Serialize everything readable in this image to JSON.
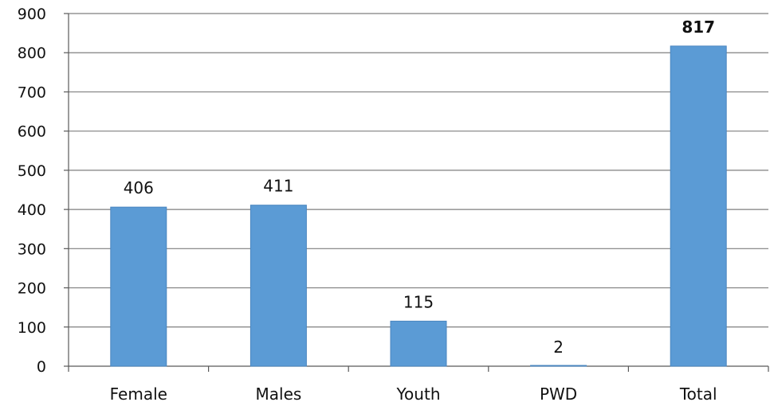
{
  "chart_data": {
    "type": "bar",
    "categories": [
      "Female",
      "Males",
      "Youth",
      "PWD",
      "Total"
    ],
    "values": [
      406,
      411,
      115,
      2,
      817
    ],
    "data_labels": [
      "406",
      "411",
      "115",
      "2",
      "817"
    ],
    "bold_labels": [
      false,
      false,
      false,
      false,
      true
    ],
    "title": "",
    "xlabel": "",
    "ylabel": "",
    "ylim": [
      0,
      900
    ],
    "yticks": [
      0,
      100,
      200,
      300,
      400,
      500,
      600,
      700,
      800,
      900
    ],
    "grid": true,
    "legend": "none",
    "colors": {
      "bar": "#5b9bd5",
      "bar_edge": "#4a86c0",
      "grid": "#7f7f7f",
      "axis": "#595959"
    }
  }
}
